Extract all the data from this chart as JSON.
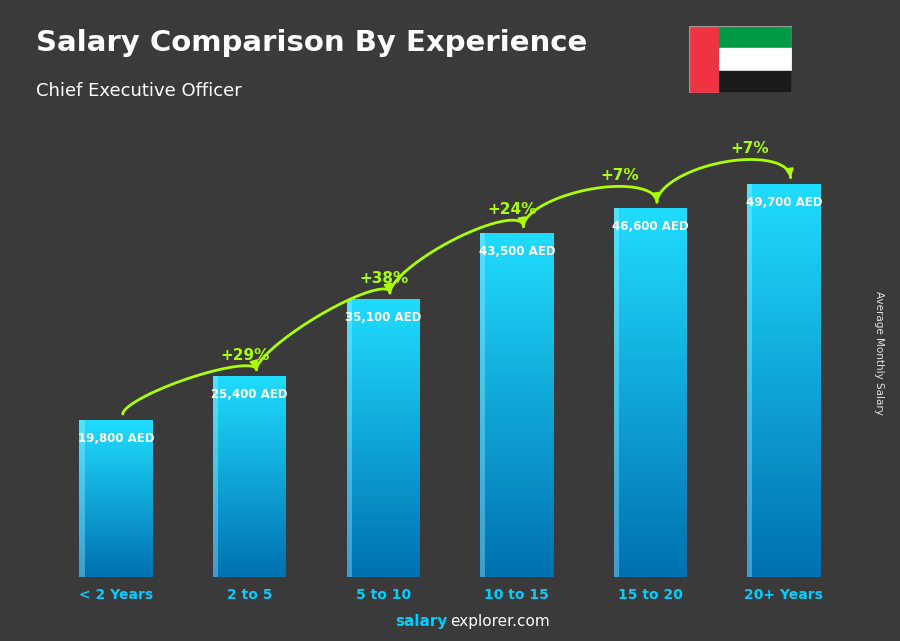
{
  "title": "Salary Comparison By Experience",
  "subtitle": "Chief Executive Officer",
  "categories": [
    "< 2 Years",
    "2 to 5",
    "5 to 10",
    "10 to 15",
    "15 to 20",
    "20+ Years"
  ],
  "values": [
    19800,
    25400,
    35100,
    43500,
    46600,
    49700
  ],
  "value_labels": [
    "19,800 AED",
    "25,400 AED",
    "35,100 AED",
    "43,500 AED",
    "46,600 AED",
    "49,700 AED"
  ],
  "pct_labels": [
    "+29%",
    "+38%",
    "+24%",
    "+7%",
    "+7%"
  ],
  "background_color": "#3a3a3a",
  "title_color": "#ffffff",
  "subtitle_color": "#ffffff",
  "pct_color": "#aaff00",
  "axis_label_color": "#00cfff",
  "side_label": "Average Monthly Salary",
  "ylim": [
    0,
    60000
  ],
  "bar_width": 0.55,
  "gradient_steps": 80
}
